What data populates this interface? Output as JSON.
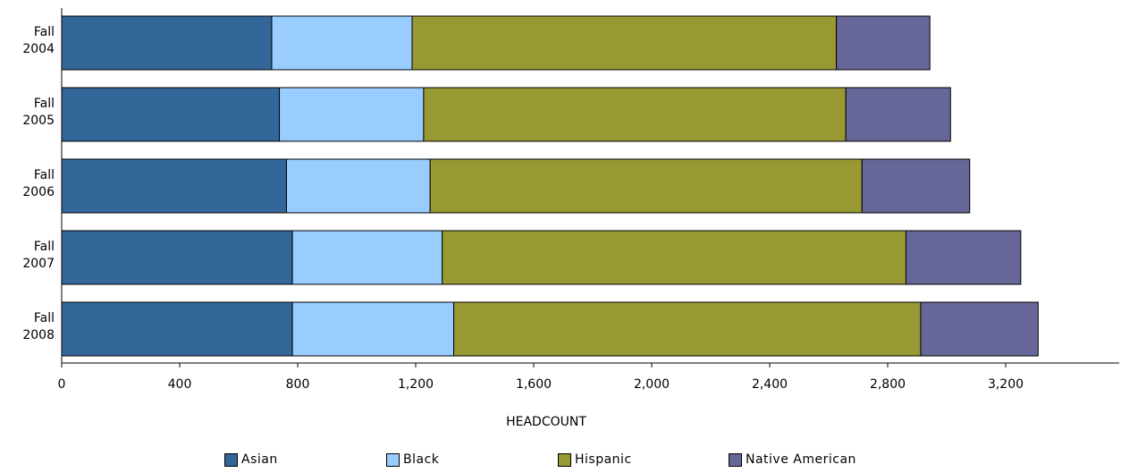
{
  "chart_data": {
    "type": "bar",
    "orientation": "horizontal",
    "stacked": true,
    "categories": [
      [
        "Fall",
        "2004"
      ],
      [
        "Fall",
        "2005"
      ],
      [
        "Fall",
        "2006"
      ],
      [
        "Fall",
        "2007"
      ],
      [
        "Fall",
        "2008"
      ]
    ],
    "series": [
      {
        "name": "Asian",
        "color": "#336699",
        "values": [
          712,
          738,
          762,
          782,
          782
        ]
      },
      {
        "name": "Black",
        "color": "#99ccff",
        "values": [
          476,
          489,
          487,
          508,
          547
        ]
      },
      {
        "name": "Hispanic",
        "color": "#999933",
        "values": [
          1438,
          1431,
          1464,
          1572,
          1583
        ]
      },
      {
        "name": "Native American",
        "color": "#666699",
        "values": [
          317,
          355,
          365,
          389,
          398
        ]
      }
    ],
    "xlabel": "HEADCOUNT",
    "ylabel": "",
    "title": "",
    "xlim": [
      0,
      3600
    ],
    "xticks": [
      0,
      400,
      800,
      1200,
      1600,
      2000,
      2400,
      2800,
      3200
    ],
    "xtick_labels": [
      "0",
      "400",
      "800",
      "1,200",
      "1,600",
      "2,000",
      "2,400",
      "2,800",
      "3,200"
    ],
    "grid": false,
    "legend_position": "bottom"
  }
}
